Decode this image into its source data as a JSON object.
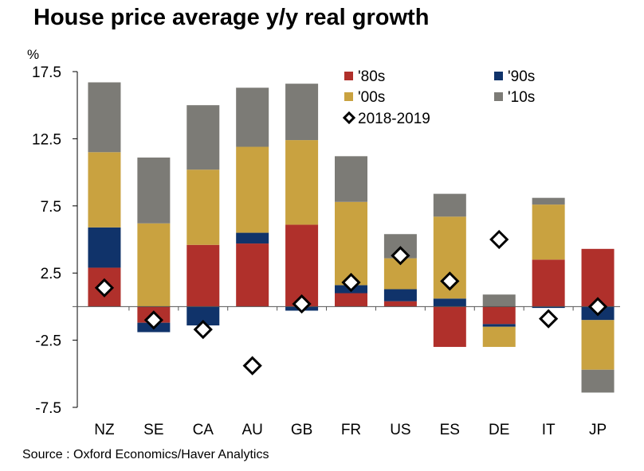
{
  "chart_data": {
    "type": "bar",
    "stacked": true,
    "title": "House price average y/y real growth",
    "ylabel": "%",
    "xlabel": "",
    "ylim": [
      -7.5,
      17.5
    ],
    "yticks": [
      17.5,
      12.5,
      7.5,
      2.5,
      -2.5,
      -7.5
    ],
    "ytick_labels": [
      "17.5",
      "12.5",
      "7.5",
      "2.5",
      "-2.5",
      "-7.5"
    ],
    "grid": false,
    "legend_position": "top-right",
    "categories": [
      "NZ",
      "SE",
      "CA",
      "AU",
      "GB",
      "FR",
      "US",
      "ES",
      "DE",
      "IT",
      "JP"
    ],
    "series": [
      {
        "name": "'80s",
        "kind": "bar",
        "color": "#B0302B",
        "values": [
          2.9,
          -1.2,
          4.6,
          4.7,
          6.1,
          1.0,
          0.4,
          -3.0,
          -1.3,
          3.5,
          4.3
        ]
      },
      {
        "name": "'90s",
        "kind": "bar",
        "color": "#10336A",
        "values": [
          3.0,
          -0.7,
          -1.4,
          0.8,
          -0.3,
          0.6,
          0.9,
          0.6,
          -0.2,
          -0.1,
          -1.0
        ]
      },
      {
        "name": "'00s",
        "kind": "bar",
        "color": "#C9A240",
        "values": [
          5.6,
          6.2,
          5.6,
          6.4,
          6.3,
          6.2,
          2.3,
          6.1,
          -1.5,
          4.1,
          -3.7
        ]
      },
      {
        "name": "'10s",
        "kind": "bar",
        "color": "#7C7B76",
        "values": [
          5.2,
          4.9,
          4.8,
          4.4,
          4.2,
          3.4,
          1.8,
          1.7,
          0.9,
          0.5,
          -1.7
        ]
      },
      {
        "name": "2018-2019",
        "kind": "marker",
        "marker": "diamond",
        "color": "#000000",
        "values": [
          1.4,
          -1.0,
          -1.7,
          -4.4,
          0.2,
          1.8,
          3.8,
          1.9,
          5.0,
          -0.9,
          0.0
        ]
      }
    ]
  },
  "source": "Source : Oxford Economics/Haver Analytics"
}
